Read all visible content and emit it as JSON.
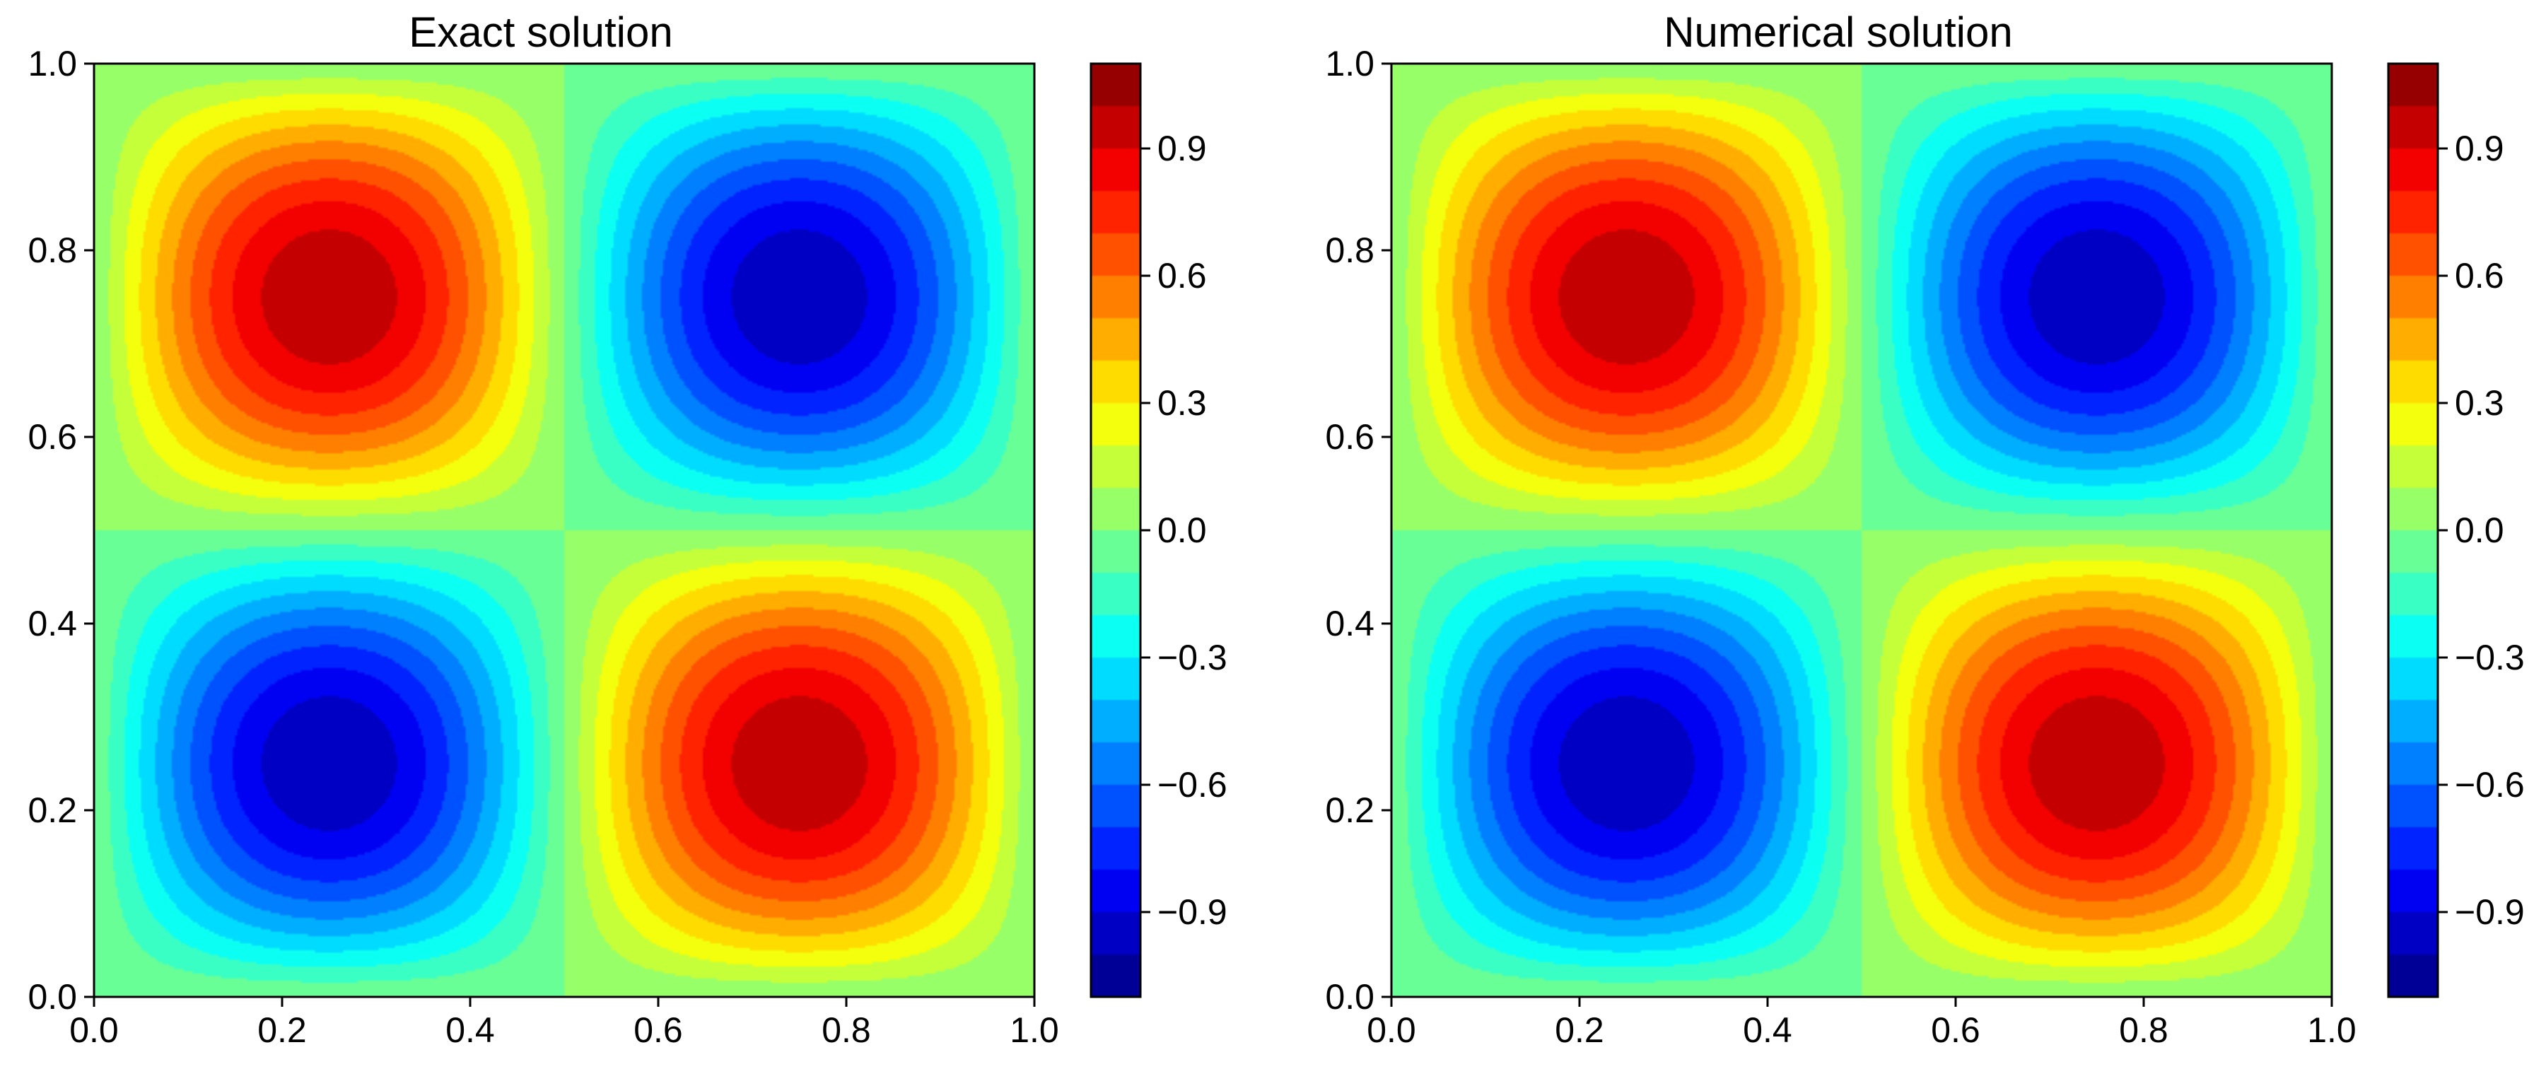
{
  "chart_data": [
    {
      "type": "heatmap",
      "title": "Exact solution",
      "xlabel": "",
      "ylabel": "",
      "xlim": [
        0.0,
        1.0
      ],
      "ylim": [
        0.0,
        1.0
      ],
      "xticks": [
        "0.0",
        "0.2",
        "0.4",
        "0.6",
        "0.8",
        "1.0"
      ],
      "yticks": [
        "0.0",
        "0.2",
        "0.4",
        "0.6",
        "0.8",
        "1.0"
      ],
      "field": "-sin(2*pi*x)*sin(2*pi*y)",
      "colormap": "jet",
      "levels": [
        -1.1,
        -1.0,
        -0.9,
        -0.8,
        -0.7,
        -0.6,
        -0.5,
        -0.4,
        -0.3,
        -0.2,
        -0.1,
        0.0,
        0.1,
        0.2,
        0.3,
        0.4,
        0.5,
        0.6,
        0.7,
        0.8,
        0.9,
        1.0,
        1.1
      ],
      "colorbar": {
        "range": [
          -1.1,
          1.1
        ],
        "ticks": [
          -0.9,
          -0.6,
          -0.3,
          0.0,
          0.3,
          0.6,
          0.9
        ],
        "tick_labels": [
          "−0.9",
          "−0.6",
          "−0.3",
          "0.0",
          "0.3",
          "0.6",
          "0.9"
        ]
      }
    },
    {
      "type": "heatmap",
      "title": "Numerical solution",
      "xlabel": "",
      "ylabel": "",
      "xlim": [
        0.0,
        1.0
      ],
      "ylim": [
        0.0,
        1.0
      ],
      "xticks": [
        "0.0",
        "0.2",
        "0.4",
        "0.6",
        "0.8",
        "1.0"
      ],
      "yticks": [
        "0.0",
        "0.2",
        "0.4",
        "0.6",
        "0.8",
        "1.0"
      ],
      "field": "-sin(2*pi*x)*sin(2*pi*y)",
      "colormap": "jet",
      "levels": [
        -1.1,
        -1.0,
        -0.9,
        -0.8,
        -0.7,
        -0.6,
        -0.5,
        -0.4,
        -0.3,
        -0.2,
        -0.1,
        0.0,
        0.1,
        0.2,
        0.3,
        0.4,
        0.5,
        0.6,
        0.7,
        0.8,
        0.9,
        1.0,
        1.1
      ],
      "colorbar": {
        "range": [
          -1.1,
          1.1
        ],
        "ticks": [
          -0.9,
          -0.6,
          -0.3,
          0.0,
          0.3,
          0.6,
          0.9
        ],
        "tick_labels": [
          "−0.9",
          "−0.6",
          "−0.3",
          "0.0",
          "0.3",
          "0.6",
          "0.9"
        ]
      }
    }
  ]
}
